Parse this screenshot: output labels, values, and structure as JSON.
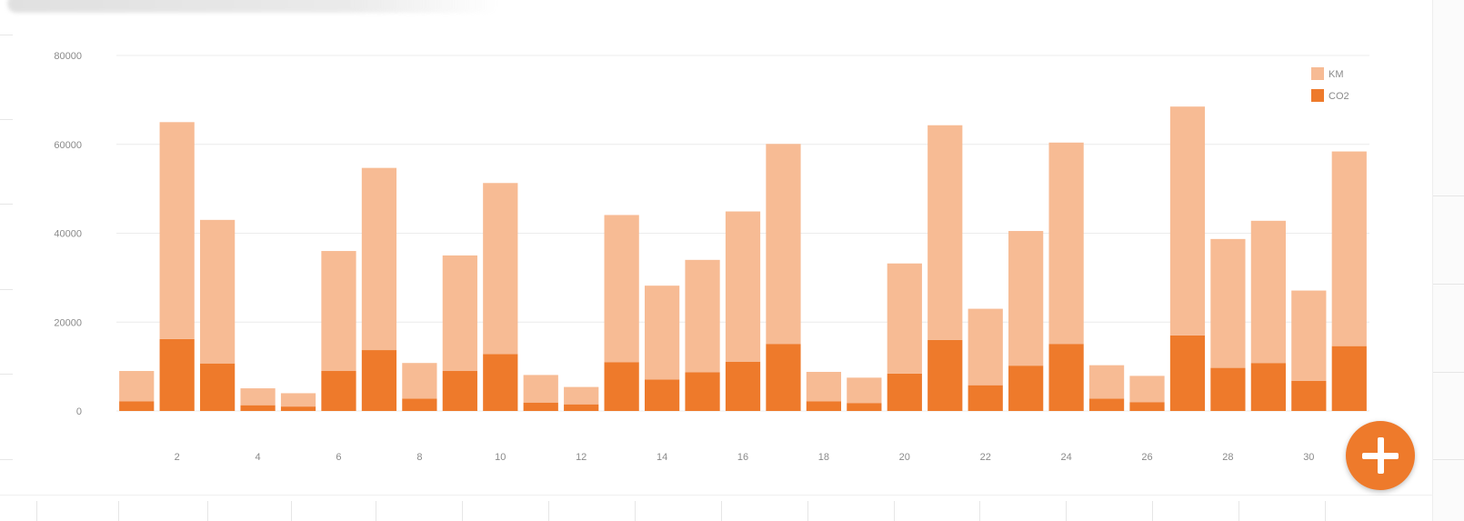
{
  "colors": {
    "km": "#f7bb94",
    "co2": "#ee7a2b",
    "grid": "#ececec",
    "fab": "#ee7a2b"
  },
  "fab": {
    "icon": "plus-icon"
  },
  "chart_data": {
    "type": "bar",
    "stacked": true,
    "x": [
      1,
      2,
      3,
      4,
      5,
      6,
      7,
      8,
      9,
      10,
      11,
      12,
      13,
      14,
      15,
      16,
      17,
      18,
      19,
      20,
      21,
      22,
      23,
      24,
      25,
      26,
      27,
      28,
      29,
      30,
      31
    ],
    "xticks": [
      "2",
      "4",
      "6",
      "8",
      "10",
      "12",
      "14",
      "16",
      "18",
      "20",
      "22",
      "24",
      "26",
      "28",
      "30"
    ],
    "yticks": [
      "0",
      "20000",
      "40000",
      "60000",
      "80000"
    ],
    "ylim": [
      0,
      80000
    ],
    "grid": true,
    "legend": "top-right",
    "series": [
      {
        "name": "KM",
        "values": [
          6800,
          48800,
          32300,
          3800,
          3000,
          27000,
          41000,
          8000,
          26000,
          38500,
          6200,
          3900,
          33100,
          21100,
          25300,
          33800,
          45000,
          6600,
          5700,
          24800,
          48300,
          17200,
          30300,
          45300,
          7500,
          5900,
          51500,
          29000,
          32000,
          20300,
          43800
        ]
      },
      {
        "name": "CO2",
        "values": [
          2200,
          16200,
          10700,
          1300,
          1000,
          9000,
          13700,
          2800,
          9000,
          12800,
          1900,
          1500,
          11000,
          7100,
          8700,
          11100,
          15100,
          2200,
          1800,
          8400,
          16000,
          5800,
          10200,
          15100,
          2800,
          2000,
          17000,
          9700,
          10800,
          6800,
          14600
        ]
      }
    ]
  }
}
